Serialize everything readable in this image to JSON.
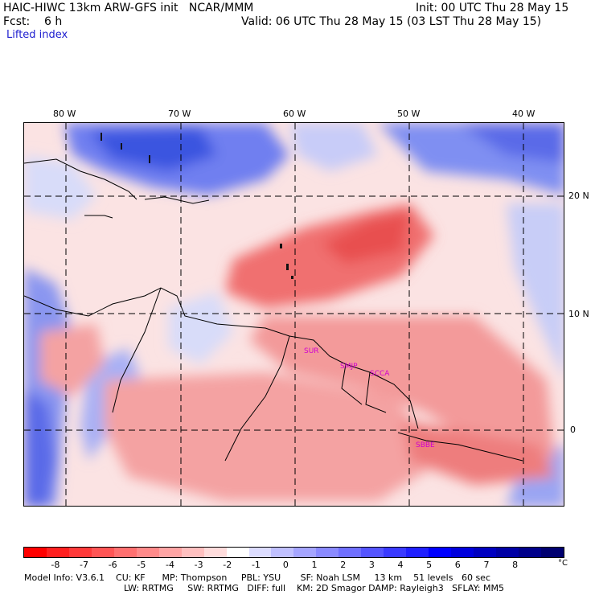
{
  "header": {
    "model": "HAIC-HIWC 13km ARW-GFS init   NCAR/MMM",
    "init": "Init: 00 UTC Thu 28 May 15",
    "fcst": "Fcst:    6 h",
    "valid": "Valid: 06 UTC Thu 28 May 15 (03 LST Thu 28 May 15)",
    "field": "Lifted index"
  },
  "map": {
    "lon_labels": [
      "80 W",
      "70 W",
      "60 W",
      "50 W",
      "40 W"
    ],
    "lat_labels": [
      "20 N",
      "10 N",
      "0"
    ],
    "stations": [
      "SUR",
      "SMJP",
      "SCCA",
      "SBBE"
    ]
  },
  "colorbar": {
    "ticks": [
      "-8",
      "-7",
      "-6",
      "-5",
      "-4",
      "-3",
      "-2",
      "-1",
      "0",
      "1",
      "2",
      "3",
      "4",
      "5",
      "6",
      "7",
      "8"
    ],
    "unit": "°C",
    "colors": [
      "#ff0000",
      "#ff2020",
      "#ff3a3a",
      "#ff5555",
      "#ff7070",
      "#ff8a8a",
      "#ffa5a5",
      "#ffc0c0",
      "#ffdcdc",
      "#ffffff",
      "#dcdcff",
      "#c0c0ff",
      "#a5a5ff",
      "#8a8aff",
      "#7070ff",
      "#5555ff",
      "#3a3aff",
      "#2020ff",
      "#0000ff",
      "#0000dd",
      "#0000c0",
      "#0000a5",
      "#00008a",
      "#000070"
    ]
  },
  "footer": {
    "line1": "Model Info: V3.6.1    CU: KF      MP: Thompson     PBL: YSU       SF: Noah LSM     13 km    51 levels   60 sec",
    "line2": "LW: RRTMG     SW: RRTMG   DIFF: full    KM: 2D Smagor DAMP: Rayleigh3   SFLAY: MM5"
  }
}
